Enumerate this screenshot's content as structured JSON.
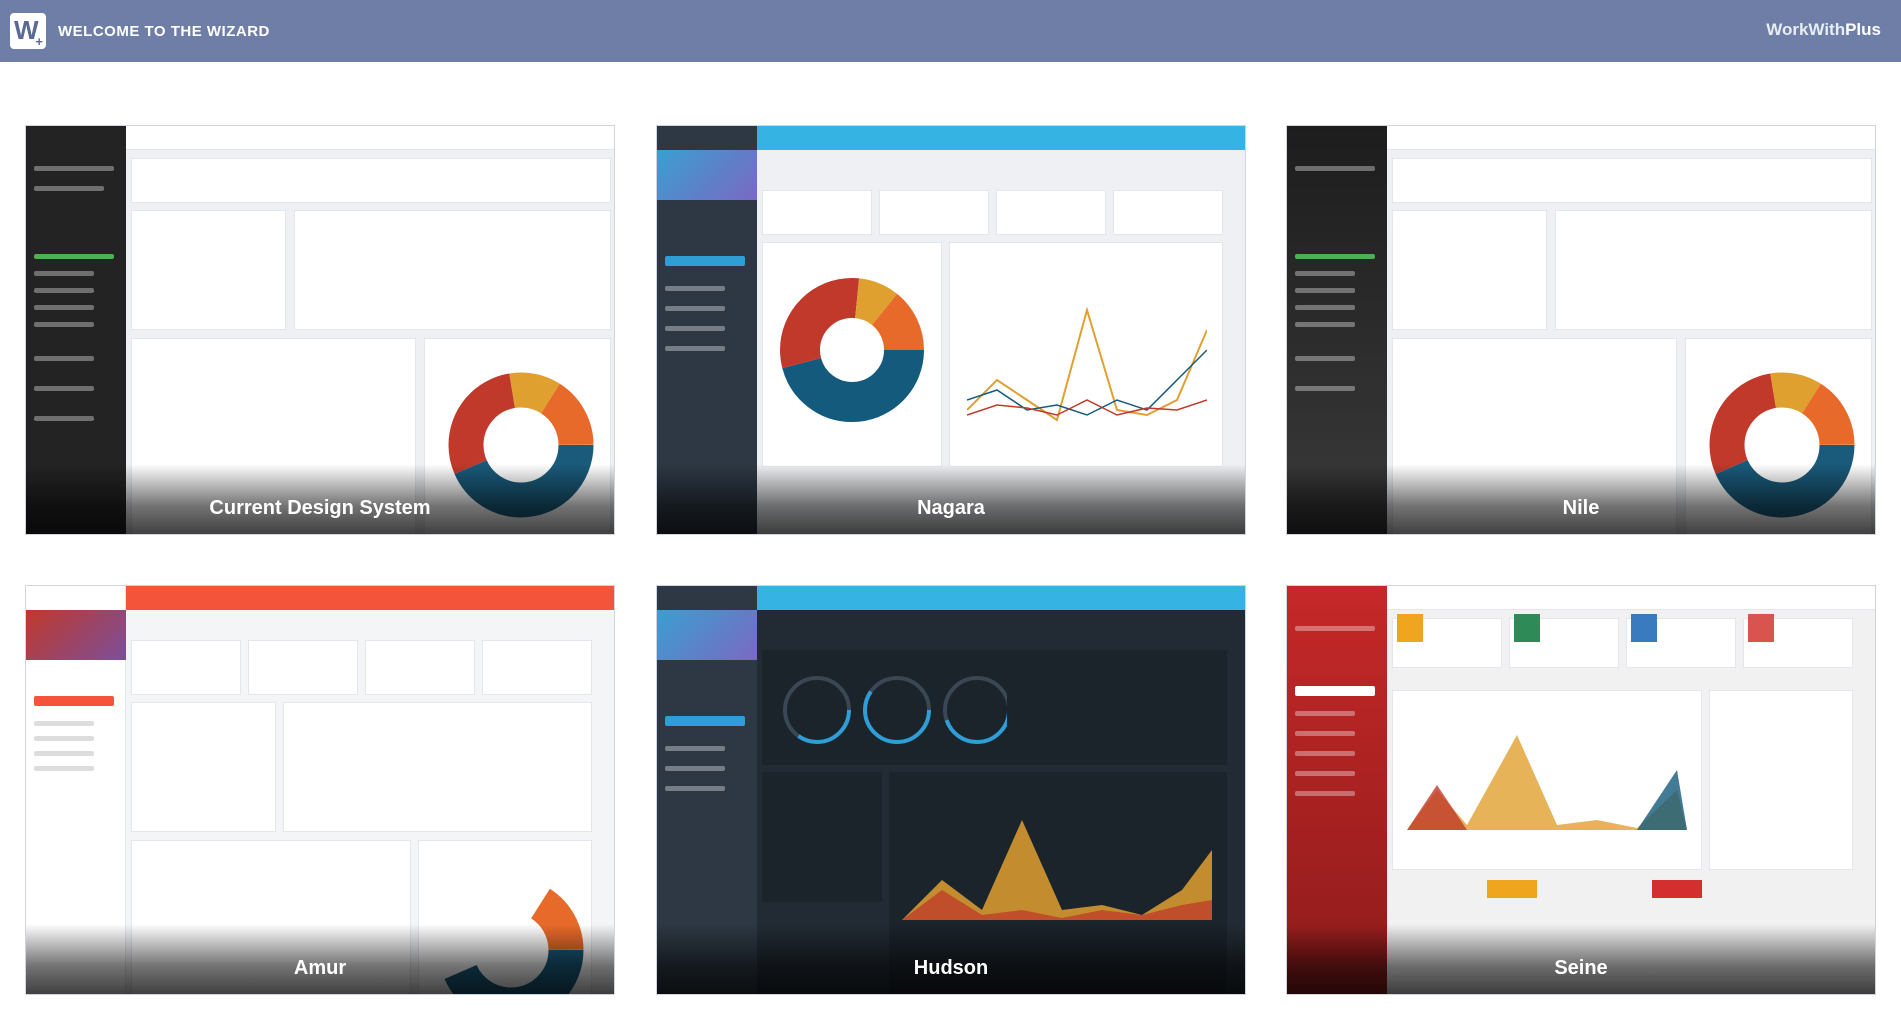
{
  "header": {
    "title": "WELCOME TO THE WIZARD",
    "brand_work": "WorkWith",
    "brand_plus": "Plus"
  },
  "themes": [
    {
      "name": "Current Design System"
    },
    {
      "name": "Nagara"
    },
    {
      "name": "Nile"
    },
    {
      "name": "Amur"
    },
    {
      "name": "Hudson"
    },
    {
      "name": "Seine"
    }
  ]
}
